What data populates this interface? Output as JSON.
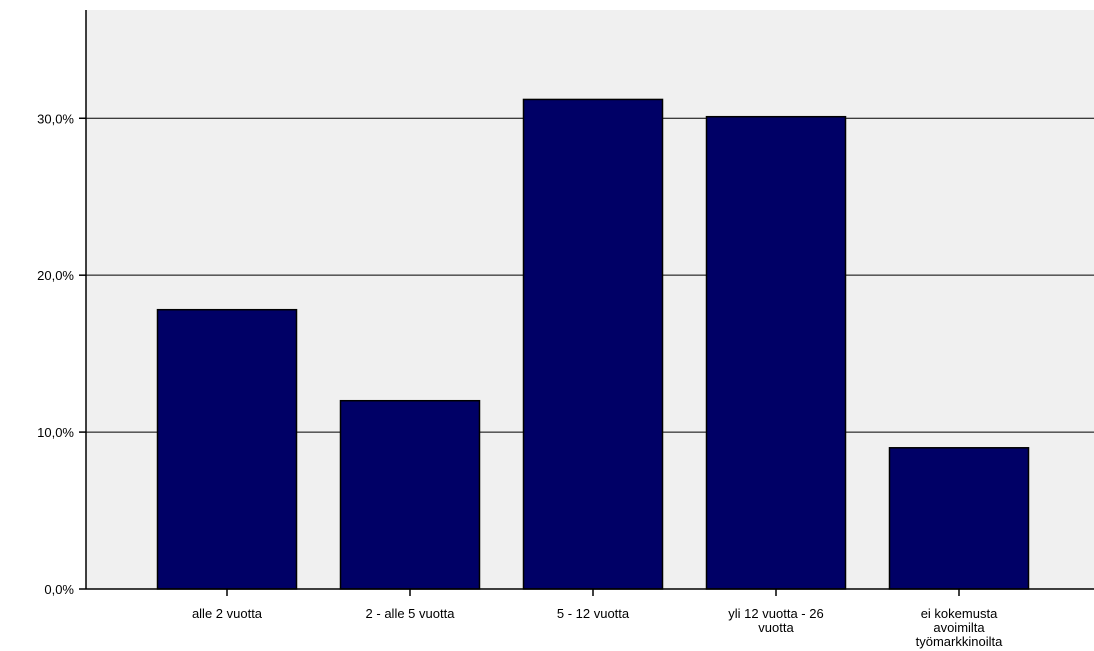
{
  "chart_data": {
    "type": "bar",
    "title": "",
    "xlabel": "",
    "ylabel": "",
    "categories": [
      [
        "alle 2 vuotta"
      ],
      [
        "2 -  alle 5 vuotta"
      ],
      [
        "5 - 12 vuotta"
      ],
      [
        "yli 12 vuotta - 26",
        "vuotta"
      ],
      [
        "ei kokemusta",
        "avoimilta",
        "työmarkkinoilta"
      ]
    ],
    "values": [
      17.8,
      12.0,
      31.2,
      30.1,
      9.0
    ],
    "unit": "%",
    "ylim": [
      0,
      36.9
    ],
    "yticks": [
      {
        "value": 0,
        "label": "0,0%"
      },
      {
        "value": 10,
        "label": "10,0%"
      },
      {
        "value": 20,
        "label": "20,0%"
      },
      {
        "value": 30,
        "label": "30,0%"
      }
    ],
    "grid": true,
    "colors": {
      "bar": "#000066",
      "plot_background": "#F0F0F0",
      "gridline": "#000000"
    }
  }
}
